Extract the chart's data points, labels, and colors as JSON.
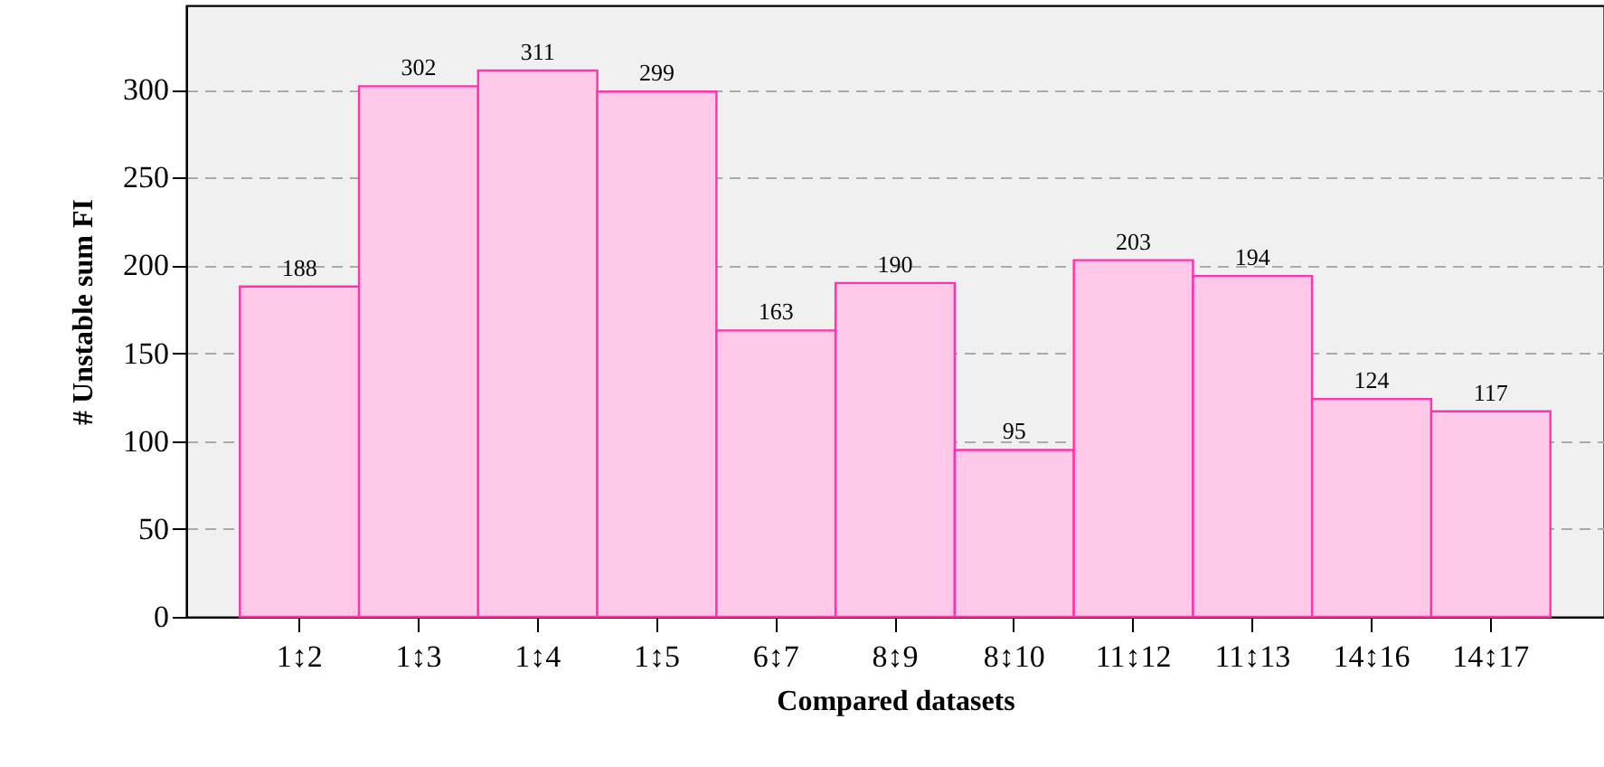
{
  "chart_data": {
    "type": "bar",
    "xlabel": "Compared datasets",
    "ylabel": "# Unstable sum FI",
    "categories": [
      "1↕2",
      "1↕3",
      "1↕4",
      "1↕5",
      "6↕7",
      "8↕9",
      "8↕10",
      "11↕12",
      "11↕13",
      "14↕16",
      "14↕17"
    ],
    "series": [
      {
        "color": "#ffc8e8",
        "values": [
          188,
          302,
          311,
          299,
          163,
          190,
          95,
          203,
          194,
          124,
          117
        ]
      }
    ],
    "ylim": [
      0,
      348
    ],
    "yticks": [
      0,
      50,
      100,
      150,
      200,
      250,
      300
    ],
    "grid": "y",
    "data_labels": true
  }
}
